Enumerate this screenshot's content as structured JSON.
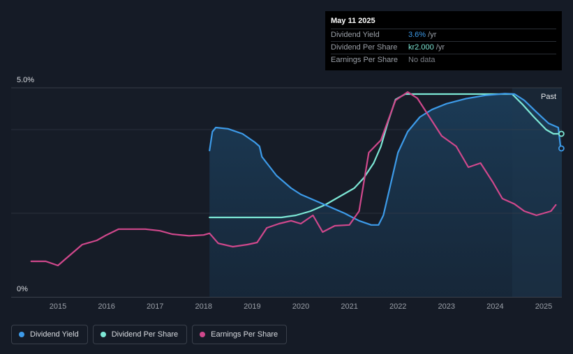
{
  "tooltip": {
    "date": "May 11 2025",
    "rows": [
      {
        "label": "Dividend Yield",
        "value": "3.6%",
        "unit": " /yr",
        "color": "#3d9be9"
      },
      {
        "label": "Dividend Per Share",
        "value": "kr2.000",
        "unit": " /yr",
        "color": "#7de8d6"
      },
      {
        "label": "Earnings Per Share",
        "value": "No data",
        "unit": "",
        "color": "#7c8088"
      }
    ]
  },
  "legend": [
    {
      "label": "Dividend Yield",
      "color": "#3d9be9"
    },
    {
      "label": "Dividend Per Share",
      "color": "#7de8d6"
    },
    {
      "label": "Earnings Per Share",
      "color": "#d0488c"
    }
  ],
  "chart_data": {
    "type": "line",
    "ylim": [
      0,
      5.0
    ],
    "y_tick_labels": [
      "5.0%",
      "0%"
    ],
    "x_ticks": [
      2015,
      2016,
      2017,
      2018,
      2019,
      2020,
      2021,
      2022,
      2023,
      2024,
      2025
    ],
    "past_label": "Past",
    "past_start": 2024.35,
    "shaded_start": 2018.12,
    "series": [
      {
        "name": "Dividend Yield",
        "color": "#3d9be9",
        "points": [
          [
            2018.12,
            3.5
          ],
          [
            2018.18,
            3.95
          ],
          [
            2018.25,
            4.05
          ],
          [
            2018.5,
            4.02
          ],
          [
            2018.8,
            3.9
          ],
          [
            2019.05,
            3.7
          ],
          [
            2019.15,
            3.6
          ],
          [
            2019.2,
            3.35
          ],
          [
            2019.5,
            2.9
          ],
          [
            2019.8,
            2.6
          ],
          [
            2020.0,
            2.45
          ],
          [
            2020.3,
            2.3
          ],
          [
            2020.6,
            2.15
          ],
          [
            2020.9,
            2.0
          ],
          [
            2021.2,
            1.82
          ],
          [
            2021.45,
            1.72
          ],
          [
            2021.6,
            1.72
          ],
          [
            2021.7,
            1.95
          ],
          [
            2021.85,
            2.7
          ],
          [
            2022.0,
            3.45
          ],
          [
            2022.2,
            3.95
          ],
          [
            2022.45,
            4.3
          ],
          [
            2022.7,
            4.48
          ],
          [
            2023.0,
            4.62
          ],
          [
            2023.4,
            4.74
          ],
          [
            2023.8,
            4.82
          ],
          [
            2024.2,
            4.86
          ],
          [
            2024.4,
            4.85
          ],
          [
            2024.6,
            4.7
          ],
          [
            2024.85,
            4.42
          ],
          [
            2025.1,
            4.15
          ],
          [
            2025.3,
            4.05
          ],
          [
            2025.35,
            3.55
          ]
        ]
      },
      {
        "name": "Dividend Per Share",
        "color": "#7de8d6",
        "points": [
          [
            2018.12,
            1.9
          ],
          [
            2019.0,
            1.9
          ],
          [
            2019.6,
            1.9
          ],
          [
            2019.9,
            1.95
          ],
          [
            2020.2,
            2.05
          ],
          [
            2020.5,
            2.2
          ],
          [
            2020.8,
            2.4
          ],
          [
            2021.1,
            2.6
          ],
          [
            2021.3,
            2.85
          ],
          [
            2021.5,
            3.2
          ],
          [
            2021.65,
            3.6
          ],
          [
            2021.8,
            4.2
          ],
          [
            2021.95,
            4.72
          ],
          [
            2022.15,
            4.85
          ],
          [
            2022.6,
            4.85
          ],
          [
            2023.0,
            4.85
          ],
          [
            2023.5,
            4.85
          ],
          [
            2024.0,
            4.85
          ],
          [
            2024.35,
            4.85
          ],
          [
            2024.55,
            4.62
          ],
          [
            2024.8,
            4.3
          ],
          [
            2025.05,
            4.0
          ],
          [
            2025.2,
            3.9
          ],
          [
            2025.35,
            3.9
          ]
        ]
      },
      {
        "name": "Earnings Per Share",
        "color": "#d0488c",
        "points": [
          [
            2014.45,
            0.85
          ],
          [
            2014.75,
            0.85
          ],
          [
            2015.0,
            0.75
          ],
          [
            2015.2,
            0.95
          ],
          [
            2015.5,
            1.25
          ],
          [
            2015.8,
            1.35
          ],
          [
            2016.0,
            1.48
          ],
          [
            2016.25,
            1.62
          ],
          [
            2016.5,
            1.62
          ],
          [
            2016.8,
            1.62
          ],
          [
            2017.1,
            1.58
          ],
          [
            2017.35,
            1.5
          ],
          [
            2017.7,
            1.46
          ],
          [
            2018.0,
            1.48
          ],
          [
            2018.12,
            1.52
          ],
          [
            2018.3,
            1.28
          ],
          [
            2018.6,
            1.2
          ],
          [
            2018.9,
            1.25
          ],
          [
            2019.1,
            1.3
          ],
          [
            2019.3,
            1.65
          ],
          [
            2019.55,
            1.75
          ],
          [
            2019.8,
            1.82
          ],
          [
            2020.0,
            1.75
          ],
          [
            2020.25,
            1.95
          ],
          [
            2020.45,
            1.55
          ],
          [
            2020.7,
            1.7
          ],
          [
            2021.0,
            1.72
          ],
          [
            2021.2,
            2.05
          ],
          [
            2021.4,
            3.45
          ],
          [
            2021.65,
            3.75
          ],
          [
            2021.95,
            4.7
          ],
          [
            2022.2,
            4.9
          ],
          [
            2022.4,
            4.75
          ],
          [
            2022.65,
            4.3
          ],
          [
            2022.9,
            3.85
          ],
          [
            2023.2,
            3.6
          ],
          [
            2023.45,
            3.1
          ],
          [
            2023.7,
            3.2
          ],
          [
            2023.95,
            2.75
          ],
          [
            2024.15,
            2.35
          ],
          [
            2024.4,
            2.22
          ],
          [
            2024.6,
            2.05
          ],
          [
            2024.85,
            1.95
          ],
          [
            2025.0,
            2.0
          ],
          [
            2025.15,
            2.05
          ],
          [
            2025.25,
            2.2
          ]
        ]
      }
    ],
    "end_markers": [
      {
        "series": "Dividend Per Share",
        "x": 2025.35,
        "y": 3.9
      },
      {
        "series": "Dividend Yield",
        "x": 2025.35,
        "y": 3.55
      }
    ]
  }
}
